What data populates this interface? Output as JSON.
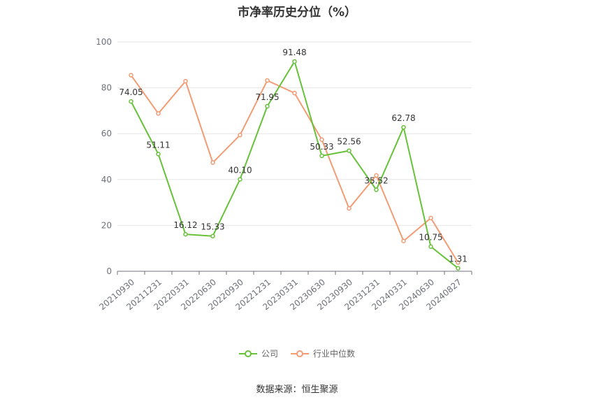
{
  "title": "市净率历史分位（%）",
  "source": "数据来源：恒生聚源",
  "chart_data": {
    "type": "line",
    "categories": [
      "20210930",
      "20211231",
      "20220331",
      "20220630",
      "20220930",
      "20221231",
      "20230331",
      "20230630",
      "20230930",
      "20231231",
      "20240331",
      "20240630",
      "20240827"
    ],
    "ylim": [
      0,
      100
    ],
    "yticks": [
      0,
      20,
      40,
      60,
      80,
      100
    ],
    "grid": true,
    "legend_position": "bottom",
    "series": [
      {
        "name": "公司",
        "color": "#67c23a",
        "labels": true,
        "values": [
          74.05,
          51.11,
          16.12,
          15.33,
          40.1,
          71.95,
          91.48,
          50.33,
          52.56,
          35.52,
          62.78,
          10.75,
          1.31
        ],
        "label_text": [
          "74.05",
          "51.11",
          "16.12",
          "15.33",
          "40.10",
          "71.95",
          "91.48",
          "50.33",
          "52.56",
          "35.52",
          "62.78",
          "10.75",
          "1.31"
        ]
      },
      {
        "name": "行业中位数",
        "color": "#f39c74",
        "labels": false,
        "values": [
          85.5,
          68.8,
          82.9,
          47.4,
          59.4,
          83.2,
          77.7,
          57.4,
          27.4,
          41.8,
          13.2,
          23.2,
          3.8
        ]
      }
    ]
  }
}
